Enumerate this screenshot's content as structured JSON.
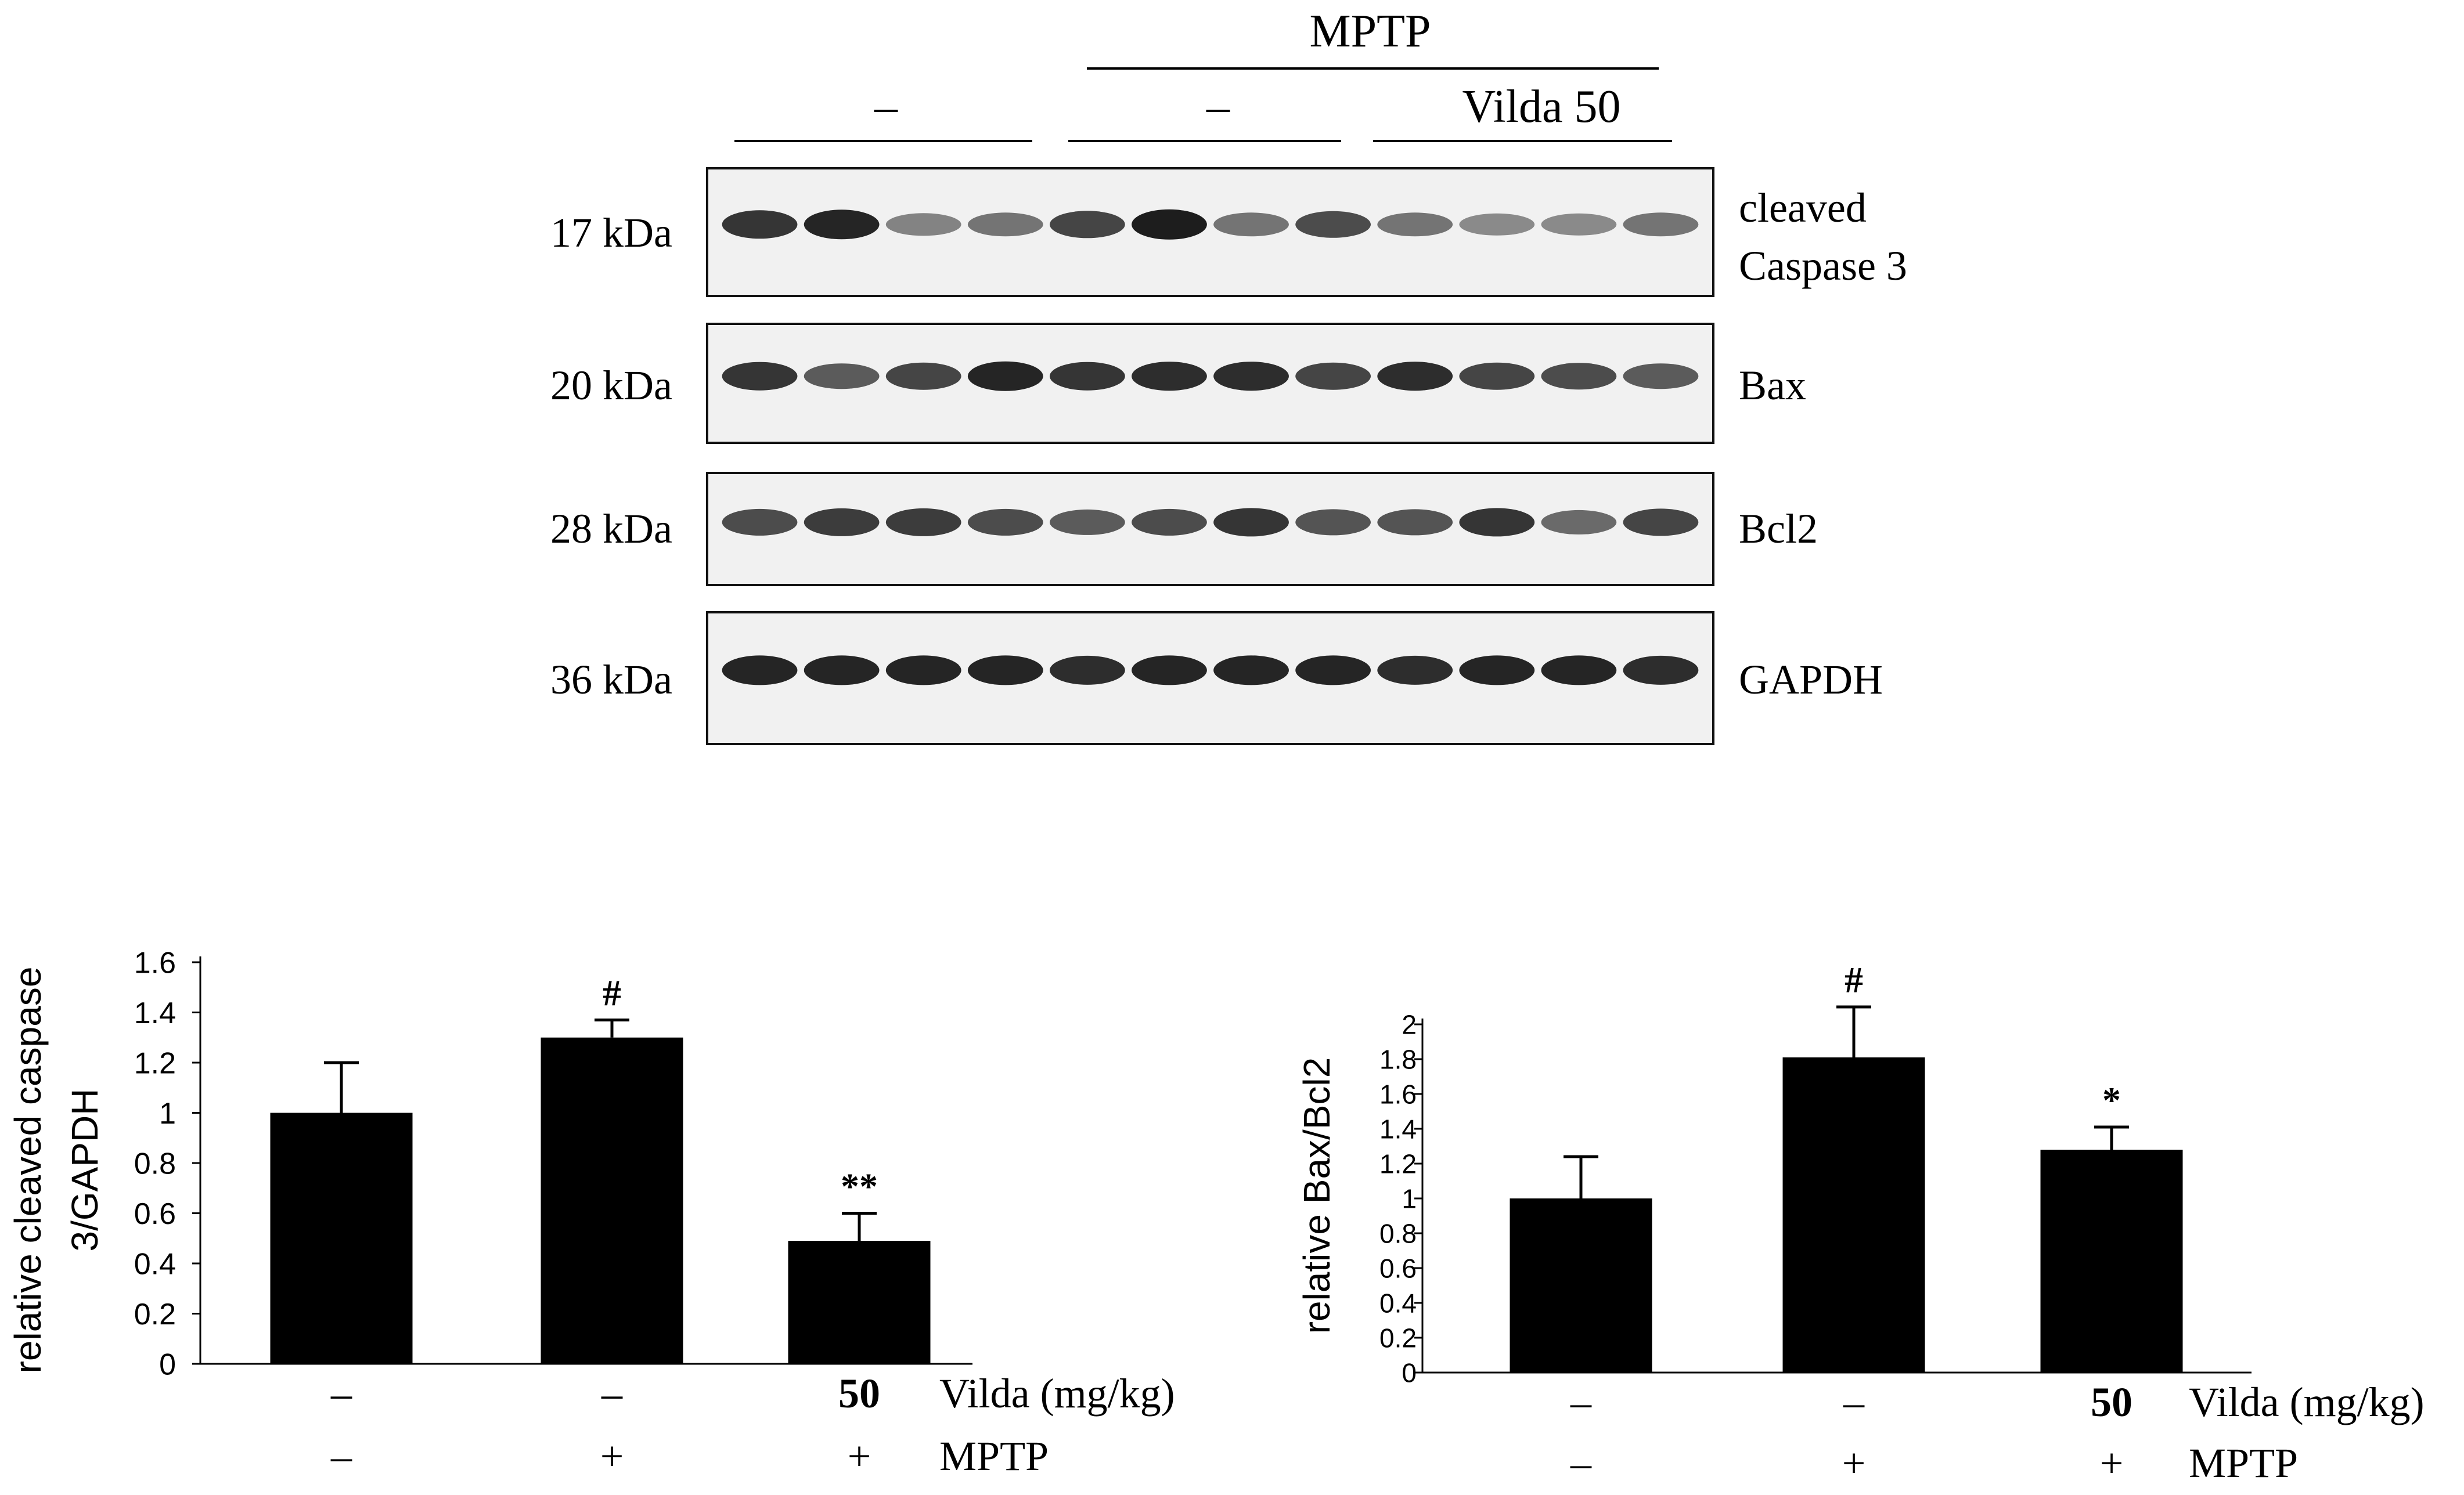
{
  "blot": {
    "group_header": "MPTP",
    "lane_groups": [
      "–",
      "–",
      "Vilda 50"
    ],
    "panels": [
      {
        "mw": "17 kDa",
        "protein_line1": "cleaved",
        "protein_line2": "Caspase  3"
      },
      {
        "mw": "20 kDa",
        "protein_line1": "Bax",
        "protein_line2": ""
      },
      {
        "mw": "28 kDa",
        "protein_line1": "Bcl2",
        "protein_line2": ""
      },
      {
        "mw": "36 kDa",
        "protein_line1": "GAPDH",
        "protein_line2": ""
      }
    ],
    "band_intensity": [
      [
        0.85,
        0.95,
        0.35,
        0.45,
        0.75,
        1.0,
        0.45,
        0.7,
        0.45,
        0.3,
        0.3,
        0.45
      ],
      [
        0.85,
        0.6,
        0.75,
        0.95,
        0.85,
        0.9,
        0.9,
        0.75,
        0.9,
        0.75,
        0.7,
        0.6
      ],
      [
        0.7,
        0.8,
        0.8,
        0.7,
        0.6,
        0.7,
        0.85,
        0.65,
        0.65,
        0.85,
        0.5,
        0.75
      ],
      [
        0.95,
        0.95,
        0.95,
        0.95,
        0.9,
        0.95,
        0.95,
        0.95,
        0.9,
        0.95,
        0.95,
        0.9
      ]
    ]
  },
  "chart_data": [
    {
      "type": "bar",
      "ylabel_line1": "relative  cleaved caspase",
      "ylabel_line2": "3/GAPDH",
      "ylim": [
        0,
        1.6
      ],
      "yticks": [
        "0",
        "0.2",
        "0.4",
        "0.6",
        "0.8",
        "1",
        "1.2",
        "1.4",
        "1.6"
      ],
      "values": [
        1.0,
        1.3,
        0.49
      ],
      "errors": [
        0.2,
        0.07,
        0.11
      ],
      "annotations": [
        "",
        "#",
        "**"
      ],
      "vilda_row": [
        "–",
        "–",
        "50"
      ],
      "mptp_row": [
        "–",
        "+",
        "+"
      ],
      "vilda_label": "Vilda (mg/kg)",
      "mptp_label": "MPTP",
      "bar_color": "#000000"
    },
    {
      "type": "bar",
      "ylabel_line1": "relative  Bax/Bcl2",
      "ylabel_line2": "",
      "ylim": [
        0,
        2
      ],
      "yticks": [
        "0",
        "0.2",
        "0.4",
        "0.6",
        "0.8",
        "1",
        "1.2",
        "1.4",
        "1.6",
        "1.8",
        "2"
      ],
      "values": [
        1.0,
        1.81,
        1.28
      ],
      "errors": [
        0.24,
        0.29,
        0.13
      ],
      "annotations": [
        "",
        "#",
        "*"
      ],
      "vilda_row": [
        "–",
        "–",
        "50"
      ],
      "mptp_row": [
        "–",
        "+",
        "+"
      ],
      "vilda_label": "Vilda (mg/kg)",
      "mptp_label": "MPTP",
      "bar_color": "#000000"
    }
  ]
}
